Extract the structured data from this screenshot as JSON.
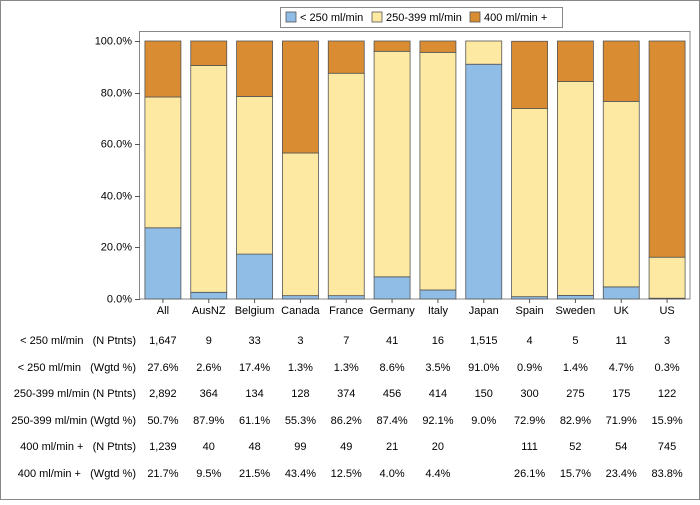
{
  "chart_data": {
    "type": "stacked_bar",
    "categories": [
      "All",
      "AusNZ",
      "Belgium",
      "Canada",
      "France",
      "Germany",
      "Italy",
      "Japan",
      "Spain",
      "Sweden",
      "UK",
      "US"
    ],
    "ylim": [
      0,
      100
    ],
    "yticks": [
      {
        "value": 0,
        "label": "0.0%"
      },
      {
        "value": 20,
        "label": "20.0%"
      },
      {
        "value": 40,
        "label": "40.0%"
      },
      {
        "value": 60,
        "label": "60.0%"
      },
      {
        "value": 80,
        "label": "80.0%"
      },
      {
        "value": 100,
        "label": "100.0%"
      }
    ],
    "series": [
      {
        "name": "< 250 ml/min",
        "color": "#8fbde6",
        "values": [
          27.6,
          2.6,
          17.4,
          1.3,
          1.3,
          8.6,
          3.5,
          91.0,
          0.9,
          1.4,
          4.7,
          0.3
        ],
        "value_labels": [
          "27.6%",
          "2.6%",
          "17.4%",
          "1.3%",
          "1.3%",
          "8.6%",
          "3.5%",
          "91.0%",
          "0.9%",
          "1.4%",
          "4.7%",
          "0.3%"
        ],
        "count_row_label": "< 250 ml/min   (N Ptnts)",
        "pct_row_label": "< 250 ml/min   (Wgtd %)",
        "counts": [
          "1,647",
          "9",
          "33",
          "3",
          "7",
          "41",
          "16",
          "1,515",
          "4",
          "5",
          "11",
          "3"
        ]
      },
      {
        "name": "250-399 ml/min",
        "color": "#fde9a1",
        "values": [
          50.7,
          87.9,
          61.1,
          55.3,
          86.2,
          87.4,
          92.1,
          9.0,
          72.9,
          82.9,
          71.9,
          15.9
        ],
        "value_labels": [
          "50.7%",
          "87.9%",
          "61.1%",
          "55.3%",
          "86.2%",
          "87.4%",
          "92.1%",
          "9.0%",
          "72.9%",
          "82.9%",
          "71.9%",
          "15.9%"
        ],
        "count_row_label": "250-399 ml/min (N Ptnts)",
        "pct_row_label": "250-399 ml/min (Wgtd %)",
        "counts": [
          "2,892",
          "364",
          "134",
          "128",
          "374",
          "456",
          "414",
          "150",
          "300",
          "275",
          "175",
          "122"
        ]
      },
      {
        "name": "400 ml/min +",
        "color": "#d98c32",
        "values": [
          21.7,
          9.5,
          21.5,
          43.4,
          12.5,
          4.0,
          4.4,
          null,
          26.1,
          15.7,
          23.4,
          83.8
        ],
        "value_labels": [
          "21.7%",
          "9.5%",
          "21.5%",
          "43.4%",
          "12.5%",
          "4.0%",
          "4.4%",
          null,
          "26.1%",
          "15.7%",
          "23.4%",
          "83.8%"
        ],
        "count_row_label": "400 ml/min +   (N Ptnts)",
        "pct_row_label": "400 ml/min +   (Wgtd %)",
        "counts": [
          "1,239",
          "40",
          "48",
          "99",
          "49",
          "21",
          "20",
          null,
          "111",
          "52",
          "54",
          "745"
        ]
      }
    ]
  }
}
